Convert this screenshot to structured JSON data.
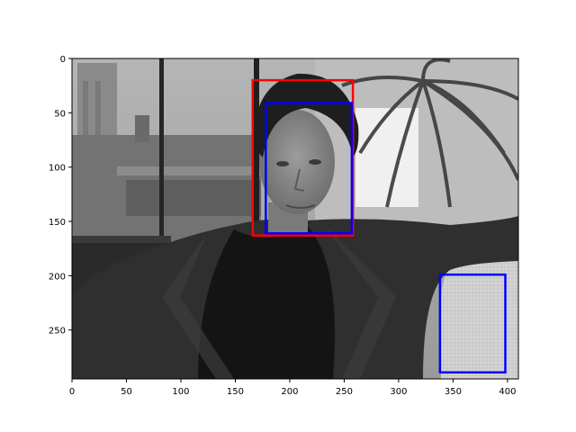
{
  "figure": {
    "image_description_colors": {
      "sky": "#a7a7a7",
      "building": "#6e6e6e",
      "jacket": "#2e2e2e",
      "shirt": "#141414",
      "couch": "#d2d2d2",
      "skin": "#8f8f8f",
      "hair": "#1e1e1e"
    },
    "x_ticks": [
      "0",
      "50",
      "100",
      "150",
      "200",
      "250",
      "300",
      "350",
      "400"
    ],
    "y_ticks": [
      "0",
      "50",
      "100",
      "150",
      "200",
      "250"
    ],
    "x_range": [
      0,
      410
    ],
    "y_range": [
      0,
      295
    ],
    "boxes": [
      {
        "name": "detection-box-red",
        "color": "#ff0000",
        "x0": 166,
        "y0": 20,
        "x1": 258,
        "y1": 163
      },
      {
        "name": "detection-box-blue-face",
        "color": "#0000ff",
        "x0": 178,
        "y0": 41,
        "x1": 257,
        "y1": 161
      },
      {
        "name": "detection-box-blue-couch",
        "color": "#0000ff",
        "x0": 338,
        "y0": 199,
        "x1": 398,
        "y1": 289
      }
    ]
  }
}
